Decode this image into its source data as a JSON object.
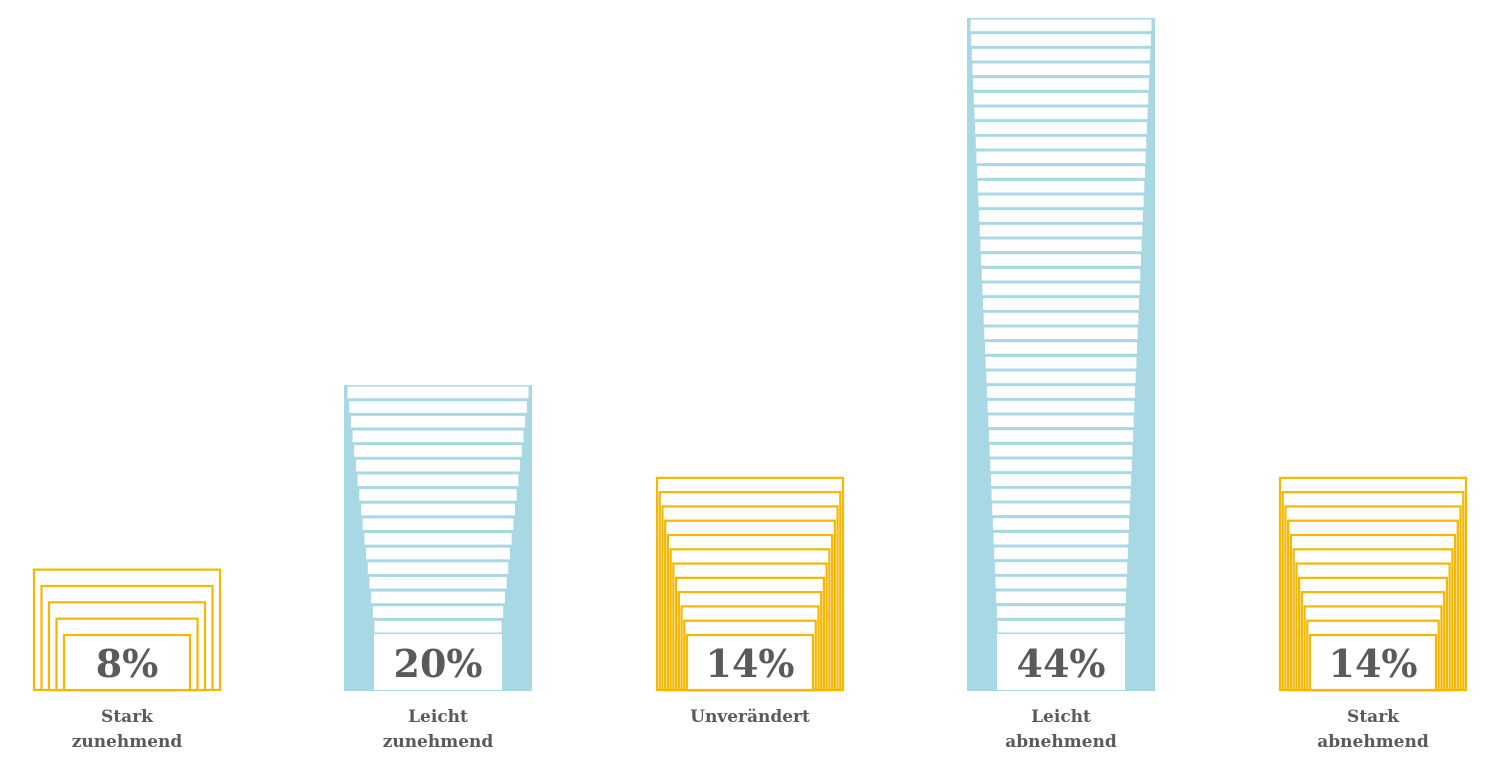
{
  "chart_data": {
    "type": "bar",
    "categories": [
      [
        "Stark",
        "zunehmend"
      ],
      [
        "Leicht",
        "zunehmend"
      ],
      [
        "Unverändert"
      ],
      [
        "Leicht",
        "abnehmend"
      ],
      [
        "Stark",
        "abnehmend"
      ]
    ],
    "values": [
      8,
      20,
      14,
      44,
      14
    ],
    "value_labels": [
      "8%",
      "20%",
      "14%",
      "44%",
      "14%"
    ],
    "styles": [
      "outline",
      "filled",
      "outline",
      "filled",
      "outline"
    ],
    "ylim": [
      0,
      44
    ],
    "grid": false,
    "legend": "none",
    "colors": {
      "outline": "#f5b700",
      "filled": "#a8d8e4",
      "text": "#5a5a5a"
    }
  }
}
